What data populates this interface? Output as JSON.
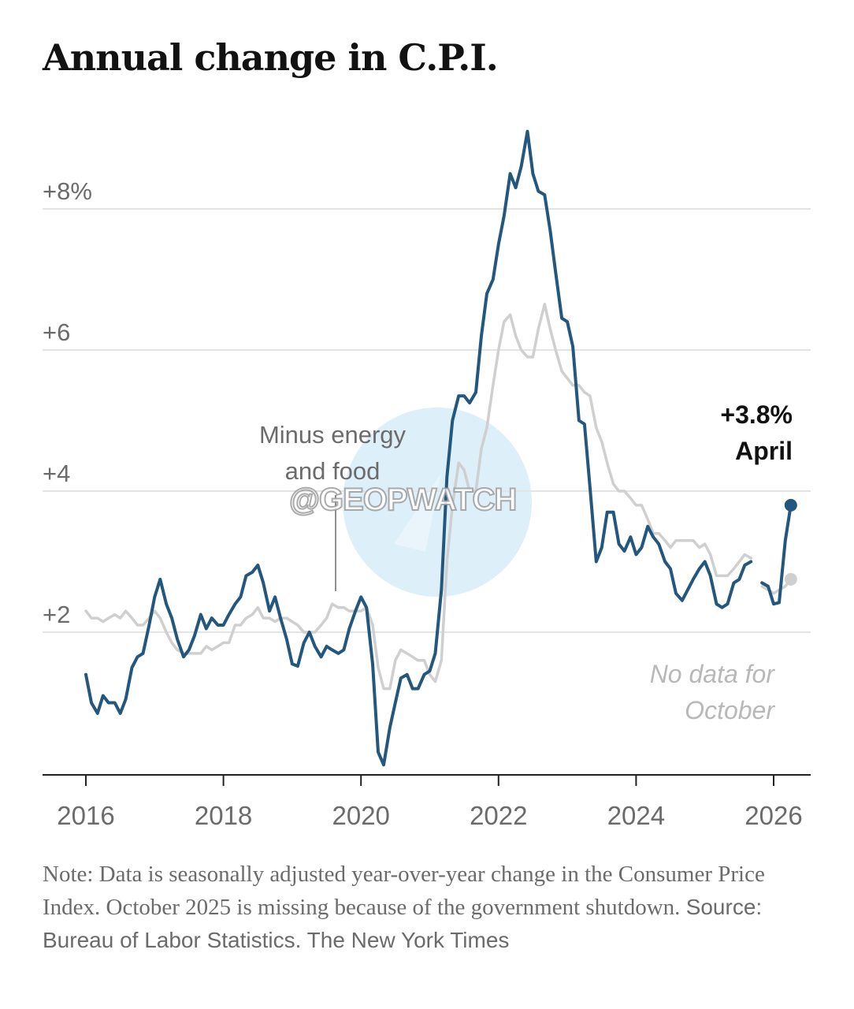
{
  "title": "Annual change in C.P.I.",
  "watermark": "@GEOPWATCH",
  "note": {
    "text": "Note: Data is seasonally adjusted year-over-year change in the Consumer Price Index. October 2025 is missing because of the government shutdown.",
    "source": "Source: Bureau of Labor Statistics.",
    "credit": "The New York Times"
  },
  "colors": {
    "headline": "#23577d",
    "core": "#cfcfcf",
    "grid": "#e4e4e4",
    "axis": "#222222"
  },
  "chart_data": {
    "type": "line",
    "title": "Annual change in C.P.I.",
    "xlabel": "",
    "ylabel": "",
    "xlim": [
      2015.5,
      2026.75
    ],
    "ylim": [
      0,
      8.9
    ],
    "x_ticks": [
      {
        "value": 2016,
        "label": "2016"
      },
      {
        "value": 2018,
        "label": "2018"
      },
      {
        "value": 2020,
        "label": "2020"
      },
      {
        "value": 2022,
        "label": "2022"
      },
      {
        "value": 2024,
        "label": "2024"
      },
      {
        "value": 2026,
        "label": "2026"
      }
    ],
    "y_ticks": [
      {
        "value": 2,
        "label": "+2"
      },
      {
        "value": 4,
        "label": "+4"
      },
      {
        "value": 6,
        "label": "+6"
      },
      {
        "value": 8,
        "label": "+8%"
      }
    ],
    "grid": true,
    "annotations": [
      {
        "text": [
          "Minus energy",
          "and food"
        ],
        "x": 2019.67,
        "y": 2.5,
        "note": "points to core series"
      },
      {
        "text": [
          "+3.8%",
          "April"
        ],
        "x": 2026.25,
        "y": 3.8
      },
      {
        "text": [
          "No data for",
          "October"
        ],
        "x": 2025.85,
        "y": 1.2
      }
    ],
    "series": [
      {
        "key": "headline",
        "end_marker": true,
        "points": [
          [
            2016.0,
            1.4
          ],
          [
            2016.08,
            1.0
          ],
          [
            2016.17,
            0.85
          ],
          [
            2016.25,
            1.1
          ],
          [
            2016.33,
            1.0
          ],
          [
            2016.42,
            1.0
          ],
          [
            2016.5,
            0.85
          ],
          [
            2016.58,
            1.05
          ],
          [
            2016.67,
            1.5
          ],
          [
            2016.75,
            1.65
          ],
          [
            2016.83,
            1.7
          ],
          [
            2016.92,
            2.1
          ],
          [
            2017.0,
            2.5
          ],
          [
            2017.08,
            2.75
          ],
          [
            2017.17,
            2.4
          ],
          [
            2017.25,
            2.2
          ],
          [
            2017.33,
            1.9
          ],
          [
            2017.42,
            1.65
          ],
          [
            2017.5,
            1.75
          ],
          [
            2017.58,
            1.95
          ],
          [
            2017.67,
            2.25
          ],
          [
            2017.75,
            2.05
          ],
          [
            2017.83,
            2.2
          ],
          [
            2017.92,
            2.1
          ],
          [
            2018.0,
            2.1
          ],
          [
            2018.08,
            2.25
          ],
          [
            2018.17,
            2.4
          ],
          [
            2018.25,
            2.5
          ],
          [
            2018.33,
            2.8
          ],
          [
            2018.42,
            2.85
          ],
          [
            2018.5,
            2.95
          ],
          [
            2018.58,
            2.7
          ],
          [
            2018.67,
            2.3
          ],
          [
            2018.75,
            2.5
          ],
          [
            2018.83,
            2.2
          ],
          [
            2018.92,
            1.9
          ],
          [
            2019.0,
            1.55
          ],
          [
            2019.08,
            1.52
          ],
          [
            2019.17,
            1.85
          ],
          [
            2019.25,
            2.0
          ],
          [
            2019.33,
            1.8
          ],
          [
            2019.42,
            1.65
          ],
          [
            2019.5,
            1.8
          ],
          [
            2019.58,
            1.75
          ],
          [
            2019.67,
            1.7
          ],
          [
            2019.75,
            1.75
          ],
          [
            2019.83,
            2.05
          ],
          [
            2019.92,
            2.3
          ],
          [
            2020.0,
            2.5
          ],
          [
            2020.08,
            2.35
          ],
          [
            2020.17,
            1.55
          ],
          [
            2020.25,
            0.3
          ],
          [
            2020.33,
            0.12
          ],
          [
            2020.42,
            0.65
          ],
          [
            2020.5,
            1.0
          ],
          [
            2020.58,
            1.35
          ],
          [
            2020.67,
            1.4
          ],
          [
            2020.75,
            1.2
          ],
          [
            2020.83,
            1.2
          ],
          [
            2020.92,
            1.4
          ],
          [
            2021.0,
            1.45
          ],
          [
            2021.08,
            1.7
          ],
          [
            2021.17,
            2.6
          ],
          [
            2021.25,
            4.2
          ],
          [
            2021.33,
            5.0
          ],
          [
            2021.42,
            5.35
          ],
          [
            2021.5,
            5.35
          ],
          [
            2021.58,
            5.25
          ],
          [
            2021.67,
            5.4
          ],
          [
            2021.75,
            6.2
          ],
          [
            2021.83,
            6.8
          ],
          [
            2021.92,
            7.0
          ],
          [
            2022.0,
            7.5
          ],
          [
            2022.08,
            7.9
          ],
          [
            2022.17,
            8.5
          ],
          [
            2022.25,
            8.3
          ],
          [
            2022.33,
            8.6
          ],
          [
            2022.42,
            9.1
          ],
          [
            2022.5,
            8.5
          ],
          [
            2022.58,
            8.25
          ],
          [
            2022.67,
            8.2
          ],
          [
            2022.75,
            7.7
          ],
          [
            2022.83,
            7.1
          ],
          [
            2022.92,
            6.45
          ],
          [
            2023.0,
            6.4
          ],
          [
            2023.08,
            6.05
          ],
          [
            2023.17,
            5.0
          ],
          [
            2023.25,
            4.95
          ],
          [
            2023.33,
            4.05
          ],
          [
            2023.42,
            3.0
          ],
          [
            2023.5,
            3.2
          ],
          [
            2023.58,
            3.7
          ],
          [
            2023.67,
            3.7
          ],
          [
            2023.75,
            3.25
          ],
          [
            2023.83,
            3.15
          ],
          [
            2023.92,
            3.35
          ],
          [
            2024.0,
            3.1
          ],
          [
            2024.08,
            3.2
          ],
          [
            2024.17,
            3.5
          ],
          [
            2024.25,
            3.35
          ],
          [
            2024.33,
            3.25
          ],
          [
            2024.42,
            3.0
          ],
          [
            2024.5,
            2.9
          ],
          [
            2024.58,
            2.55
          ],
          [
            2024.67,
            2.45
          ],
          [
            2024.75,
            2.6
          ],
          [
            2024.83,
            2.75
          ],
          [
            2024.92,
            2.9
          ],
          [
            2025.0,
            3.0
          ],
          [
            2025.08,
            2.8
          ],
          [
            2025.17,
            2.4
          ],
          [
            2025.25,
            2.35
          ],
          [
            2025.33,
            2.4
          ],
          [
            2025.42,
            2.7
          ],
          [
            2025.5,
            2.75
          ],
          [
            2025.58,
            2.95
          ],
          [
            2025.67,
            3.0
          ],
          null,
          [
            2025.83,
            2.7
          ],
          [
            2025.92,
            2.65
          ],
          [
            2026.0,
            2.4
          ],
          [
            2026.08,
            2.42
          ],
          [
            2026.17,
            3.3
          ],
          [
            2026.25,
            3.8
          ]
        ]
      },
      {
        "key": "core",
        "end_marker": true,
        "points": [
          [
            2016.0,
            2.3
          ],
          [
            2016.08,
            2.2
          ],
          [
            2016.17,
            2.2
          ],
          [
            2016.25,
            2.15
          ],
          [
            2016.33,
            2.2
          ],
          [
            2016.42,
            2.25
          ],
          [
            2016.5,
            2.2
          ],
          [
            2016.58,
            2.3
          ],
          [
            2016.67,
            2.2
          ],
          [
            2016.75,
            2.1
          ],
          [
            2016.83,
            2.1
          ],
          [
            2016.92,
            2.2
          ],
          [
            2017.0,
            2.3
          ],
          [
            2017.08,
            2.2
          ],
          [
            2017.17,
            2.0
          ],
          [
            2017.25,
            1.85
          ],
          [
            2017.33,
            1.75
          ],
          [
            2017.42,
            1.7
          ],
          [
            2017.5,
            1.7
          ],
          [
            2017.58,
            1.7
          ],
          [
            2017.67,
            1.7
          ],
          [
            2017.75,
            1.8
          ],
          [
            2017.83,
            1.75
          ],
          [
            2017.92,
            1.8
          ],
          [
            2018.0,
            1.85
          ],
          [
            2018.08,
            1.85
          ],
          [
            2018.17,
            2.1
          ],
          [
            2018.25,
            2.1
          ],
          [
            2018.33,
            2.2
          ],
          [
            2018.42,
            2.25
          ],
          [
            2018.5,
            2.35
          ],
          [
            2018.58,
            2.2
          ],
          [
            2018.67,
            2.2
          ],
          [
            2018.75,
            2.15
          ],
          [
            2018.83,
            2.2
          ],
          [
            2018.92,
            2.2
          ],
          [
            2019.0,
            2.15
          ],
          [
            2019.08,
            2.1
          ],
          [
            2019.17,
            2.0
          ],
          [
            2019.25,
            2.0
          ],
          [
            2019.33,
            2.0
          ],
          [
            2019.42,
            2.1
          ],
          [
            2019.5,
            2.2
          ],
          [
            2019.58,
            2.4
          ],
          [
            2019.67,
            2.35
          ],
          [
            2019.75,
            2.35
          ],
          [
            2019.83,
            2.3
          ],
          [
            2019.92,
            2.3
          ],
          [
            2020.0,
            2.3
          ],
          [
            2020.08,
            2.35
          ],
          [
            2020.17,
            2.1
          ],
          [
            2020.25,
            1.5
          ],
          [
            2020.33,
            1.2
          ],
          [
            2020.42,
            1.2
          ],
          [
            2020.5,
            1.6
          ],
          [
            2020.58,
            1.75
          ],
          [
            2020.67,
            1.7
          ],
          [
            2020.75,
            1.65
          ],
          [
            2020.83,
            1.6
          ],
          [
            2020.92,
            1.6
          ],
          [
            2021.0,
            1.4
          ],
          [
            2021.08,
            1.3
          ],
          [
            2021.17,
            1.6
          ],
          [
            2021.25,
            3.0
          ],
          [
            2021.33,
            3.8
          ],
          [
            2021.42,
            4.4
          ],
          [
            2021.5,
            4.3
          ],
          [
            2021.58,
            4.0
          ],
          [
            2021.67,
            4.0
          ],
          [
            2021.75,
            4.6
          ],
          [
            2021.83,
            4.9
          ],
          [
            2021.92,
            5.5
          ],
          [
            2022.0,
            6.0
          ],
          [
            2022.08,
            6.4
          ],
          [
            2022.17,
            6.5
          ],
          [
            2022.25,
            6.2
          ],
          [
            2022.33,
            6.0
          ],
          [
            2022.42,
            5.9
          ],
          [
            2022.5,
            5.9
          ],
          [
            2022.58,
            6.3
          ],
          [
            2022.67,
            6.65
          ],
          [
            2022.75,
            6.3
          ],
          [
            2022.83,
            6.0
          ],
          [
            2022.92,
            5.7
          ],
          [
            2023.0,
            5.6
          ],
          [
            2023.08,
            5.5
          ],
          [
            2023.17,
            5.5
          ],
          [
            2023.25,
            5.4
          ],
          [
            2023.33,
            5.35
          ],
          [
            2023.42,
            4.9
          ],
          [
            2023.5,
            4.7
          ],
          [
            2023.58,
            4.4
          ],
          [
            2023.67,
            4.1
          ],
          [
            2023.75,
            4.0
          ],
          [
            2023.83,
            4.0
          ],
          [
            2023.92,
            3.9
          ],
          [
            2024.0,
            3.8
          ],
          [
            2024.08,
            3.8
          ],
          [
            2024.17,
            3.6
          ],
          [
            2024.25,
            3.4
          ],
          [
            2024.33,
            3.4
          ],
          [
            2024.42,
            3.3
          ],
          [
            2024.5,
            3.2
          ],
          [
            2024.58,
            3.3
          ],
          [
            2024.67,
            3.3
          ],
          [
            2024.75,
            3.3
          ],
          [
            2024.83,
            3.3
          ],
          [
            2024.92,
            3.2
          ],
          [
            2025.0,
            3.25
          ],
          [
            2025.08,
            3.1
          ],
          [
            2025.17,
            2.8
          ],
          [
            2025.25,
            2.8
          ],
          [
            2025.33,
            2.8
          ],
          [
            2025.42,
            2.9
          ],
          [
            2025.5,
            3.0
          ],
          [
            2025.58,
            3.1
          ],
          [
            2025.67,
            3.05
          ],
          null,
          [
            2025.83,
            2.65
          ],
          [
            2025.92,
            2.6
          ],
          [
            2026.0,
            2.55
          ],
          [
            2026.08,
            2.6
          ],
          [
            2026.17,
            2.65
          ],
          [
            2026.25,
            2.75
          ]
        ]
      }
    ]
  }
}
